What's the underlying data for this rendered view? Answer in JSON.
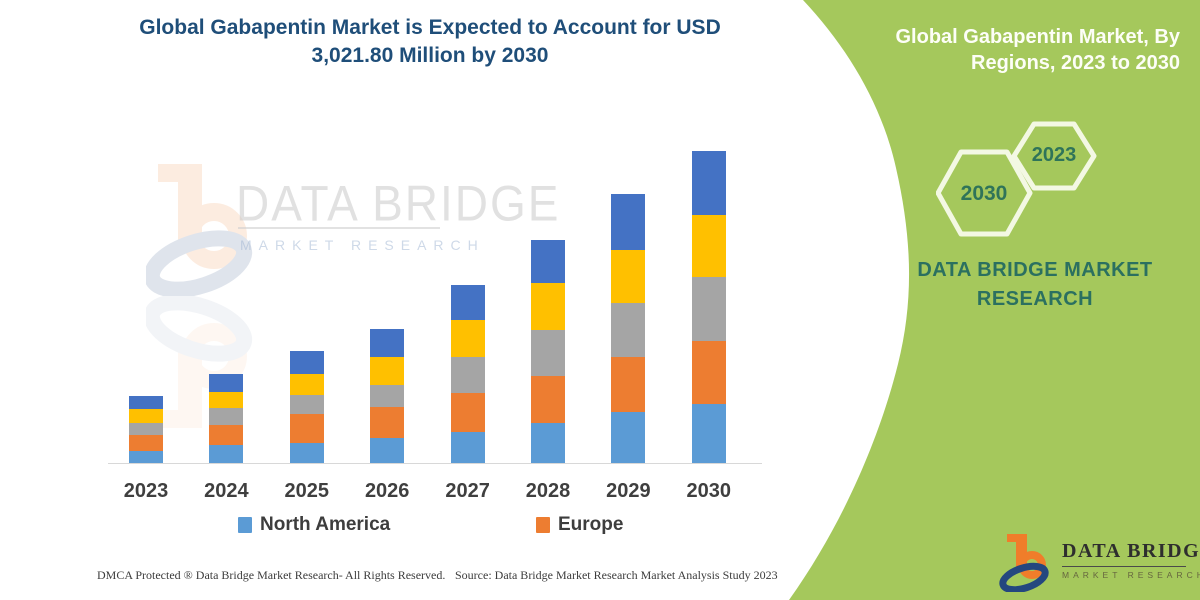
{
  "title": {
    "line1": "Global Gabapentin Market is Expected to Account for USD",
    "line2": "3,021.80 Million by 2030"
  },
  "sidebar": {
    "heading_line1": "Global Gabapentin Market, By",
    "heading_line2": "Regions, 2023 to 2030",
    "hexagons": [
      {
        "label": "2030"
      },
      {
        "label": "2023"
      }
    ],
    "brand_line1": "DATA BRIDGE MARKET",
    "brand_line2": "RESEARCH",
    "background_color": "#a5c85c",
    "hexagon_outline_color": "#f3f8e3",
    "accent_text_color": "#2f7459",
    "heading_text_color": "#fdfef7"
  },
  "logo": {
    "name": "DATA BRIDGE",
    "tagline": "MARKET RESEARCH",
    "orange": "#f07d2a",
    "blue": "#24477f"
  },
  "watermark": {
    "line1": "DATA BRIDGE",
    "line2": "MARKET RESEARCH"
  },
  "footer": {
    "dmca": "DMCA Protected ® Data Bridge Market Research-  All Rights Reserved.",
    "source": "Source: Data Bridge Market Research  Market Analysis Study 2023"
  },
  "colors": {
    "title_text": "#1f4e79",
    "axis_line": "#d8d8d8",
    "tick_label": "#3f3f3f"
  },
  "chart_data": {
    "type": "bar",
    "stacked": true,
    "title": "Global Gabapentin Market is Expected to Account for USD 3,021.80 Million by 2030",
    "categories": [
      "2023",
      "2024",
      "2025",
      "2026",
      "2027",
      "2028",
      "2029",
      "2030"
    ],
    "series": [
      {
        "name": "North America",
        "color": "#5B9BD5",
        "values": [
          118,
          177,
          196,
          245,
          304,
          392,
          491,
          569
        ]
      },
      {
        "name": "Europe",
        "color": "#ED7D31",
        "values": [
          157,
          196,
          275,
          294,
          373,
          451,
          540,
          618
        ]
      },
      {
        "name": "",
        "color": "#A5A5A5",
        "values": [
          108,
          157,
          186,
          216,
          353,
          441,
          520,
          618
        ]
      },
      {
        "name": "",
        "color": "#FFC000",
        "values": [
          137,
          157,
          206,
          275,
          353,
          461,
          510,
          599
        ]
      },
      {
        "name": "",
        "color": "#4472C4",
        "values": [
          128,
          177,
          226,
          265,
          343,
          412,
          540,
          618
        ]
      }
    ],
    "visible_legend": [
      "North America",
      "Europe"
    ],
    "legend_position": "bottom",
    "xlabel": "",
    "ylabel": "",
    "y_axis_visible": false,
    "grid": false,
    "units": "USD Million",
    "values_estimated_from_pixels": true,
    "anchor": {
      "year": "2030",
      "total": 3021.8
    },
    "ylim": [
      0,
      3100
    ]
  }
}
